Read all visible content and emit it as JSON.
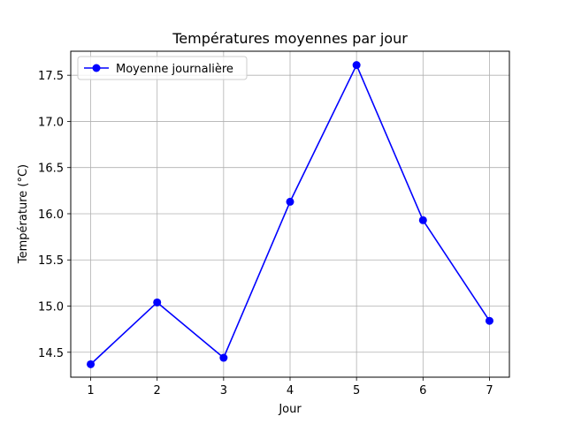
{
  "chart_data": {
    "type": "line",
    "title": "Températures moyennes par jour",
    "xlabel": "Jour",
    "ylabel": "Température (°C)",
    "x": [
      1,
      2,
      3,
      4,
      5,
      6,
      7
    ],
    "series": [
      {
        "name": "Moyenne journalière",
        "values": [
          14.37,
          15.04,
          14.44,
          16.13,
          17.61,
          15.93,
          14.84
        ],
        "color": "#0000ff",
        "marker": "circle"
      }
    ],
    "xlim": [
      0.7,
      7.3
    ],
    "ylim": [
      14.23,
      17.76
    ],
    "xticks": [
      1,
      2,
      3,
      4,
      5,
      6,
      7
    ],
    "yticks": [
      14.5,
      15.0,
      15.5,
      16.0,
      16.5,
      17.0,
      17.5
    ],
    "ytick_labels": [
      "14.5",
      "15.0",
      "15.5",
      "16.0",
      "16.5",
      "17.0",
      "17.5"
    ],
    "grid": true,
    "legend_position": "top-left"
  }
}
